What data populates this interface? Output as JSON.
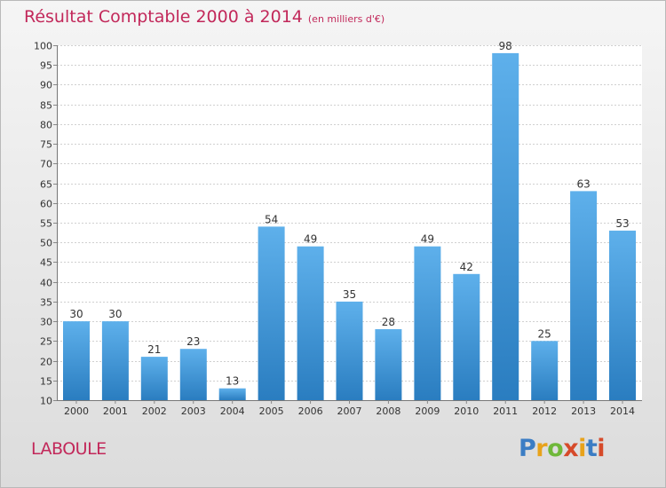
{
  "header": {
    "title": "Résultat Comptable 2000 à 2014",
    "subtitle": "(en milliers d'€)"
  },
  "footer": {
    "commune": "LABOULE",
    "logo_text": "Proxiti"
  },
  "colors": {
    "accent": "#c2285a",
    "bar_top": "#5eb0eb",
    "bar_bottom": "#2a7dc0",
    "logo": [
      "#3b7dc4",
      "#e8a21a",
      "#6fb83a",
      "#d64a2a",
      "#e8a21a",
      "#3b7dc4",
      "#d64a2a"
    ]
  },
  "chart_data": {
    "type": "bar",
    "categories": [
      "2000",
      "2001",
      "2002",
      "2003",
      "2004",
      "2005",
      "2006",
      "2007",
      "2008",
      "2009",
      "2010",
      "2011",
      "2012",
      "2013",
      "2014"
    ],
    "values": [
      30,
      30,
      21,
      23,
      13,
      54,
      49,
      35,
      28,
      49,
      42,
      98,
      25,
      63,
      53
    ],
    "ylim": [
      10,
      100
    ],
    "yticks": [
      10,
      15,
      20,
      25,
      30,
      35,
      40,
      45,
      50,
      55,
      60,
      65,
      70,
      75,
      80,
      85,
      90,
      95,
      100
    ],
    "grid": true
  }
}
